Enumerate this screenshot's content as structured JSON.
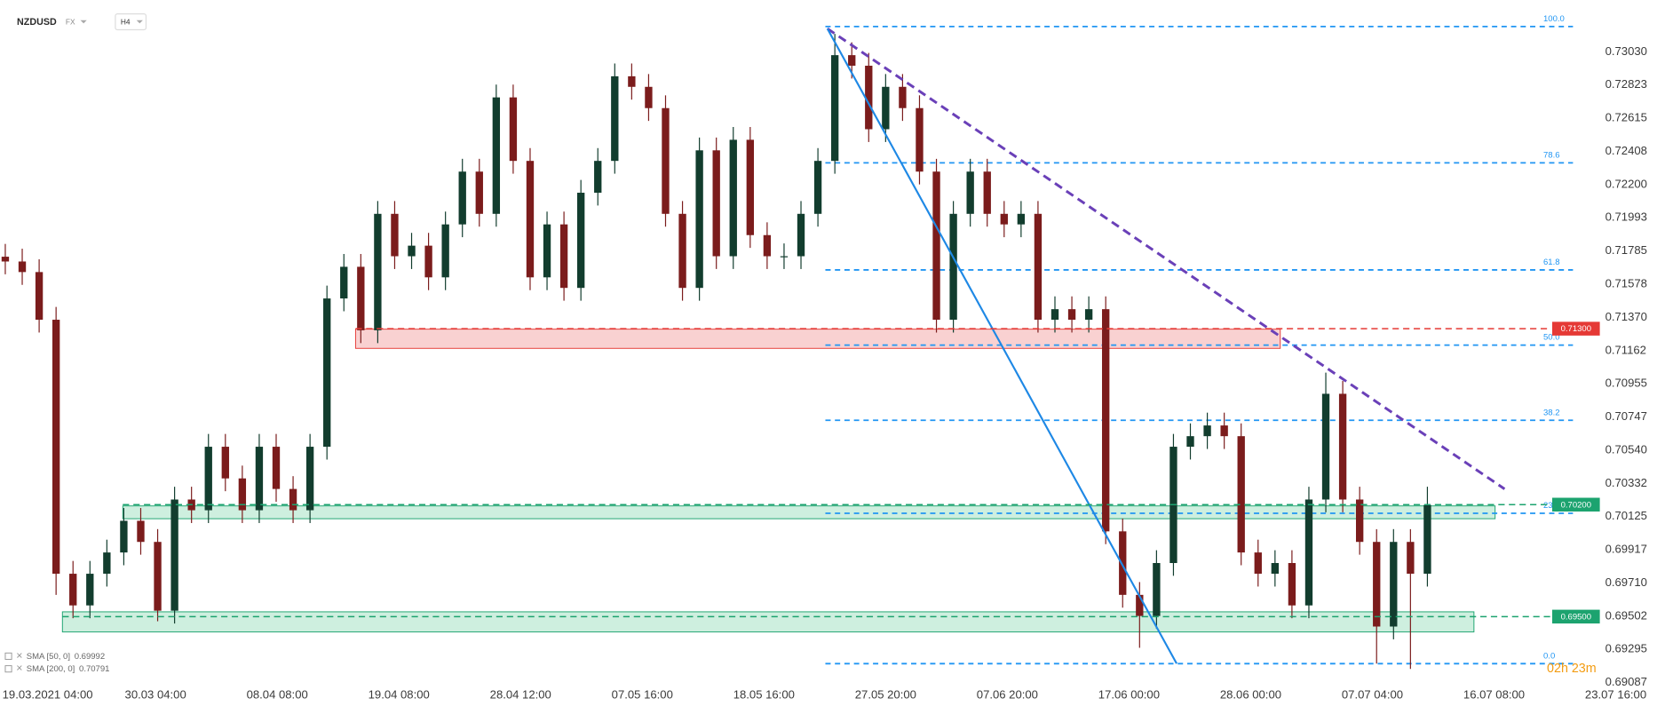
{
  "header": {
    "symbol": "NZDUSD",
    "market": "FX",
    "timeframe": "H4"
  },
  "chart_data": {
    "type": "candlestick",
    "up_color": "#123d2e",
    "down_color": "#7b1c1c",
    "open": [
      0.7175,
      0.7172,
      0.71654,
      0.71356,
      0.69768,
      0.6957,
      0.69768,
      0.69901,
      0.70099,
      0.69967,
      0.69537,
      0.70232,
      0.70165,
      0.70562,
      0.70364,
      0.70165,
      0.70562,
      0.70298,
      0.70165,
      0.70562,
      0.71489,
      0.71687,
      0.7129,
      0.72018,
      0.71753,
      0.71819,
      0.71621,
      0.71952,
      0.72282,
      0.72018,
      0.72746,
      0.72349,
      0.71621,
      0.71952,
      0.71555,
      0.7215,
      0.72349,
      0.72878,
      0.72812,
      0.72679,
      0.72018,
      0.71555,
      0.72415,
      0.71753,
      0.72481,
      0.71885,
      0.71753,
      0.71753,
      0.72018,
      0.72349,
      0.7301,
      0.72944,
      0.72547,
      0.72812,
      0.72679,
      0.72282,
      0.71356,
      0.72018,
      0.72282,
      0.72018,
      0.71952,
      0.72018,
      0.71356,
      0.71422,
      0.71356,
      0.71422,
      0.70033,
      0.69636,
      0.69504,
      0.69835,
      0.70562,
      0.70628,
      0.70695,
      0.70628,
      0.69901,
      0.69768,
      0.69835,
      0.6957,
      0.70232,
      0.70893,
      0.70232,
      0.69967,
      0.69438,
      0.69967,
      0.69768
    ],
    "high": [
      0.7183,
      0.718,
      0.71734,
      0.71436,
      0.69848,
      0.69848,
      0.69981,
      0.70179,
      0.70179,
      0.70047,
      0.70312,
      0.70312,
      0.70642,
      0.70642,
      0.70444,
      0.70642,
      0.70642,
      0.70378,
      0.70642,
      0.71569,
      0.71767,
      0.71767,
      0.72098,
      0.72098,
      0.71899,
      0.71899,
      0.72032,
      0.72362,
      0.72362,
      0.72826,
      0.72826,
      0.72429,
      0.72032,
      0.72032,
      0.7223,
      0.72429,
      0.72958,
      0.72958,
      0.72892,
      0.72759,
      0.72098,
      0.72495,
      0.72495,
      0.72561,
      0.72561,
      0.71965,
      0.71833,
      0.72098,
      0.72429,
      0.73143,
      0.7309,
      0.73024,
      0.72892,
      0.72892,
      0.72759,
      0.72362,
      0.72098,
      0.72362,
      0.72362,
      0.72098,
      0.72098,
      0.72098,
      0.71502,
      0.71502,
      0.71502,
      0.71502,
      0.70113,
      0.69716,
      0.69915,
      0.70642,
      0.70708,
      0.70775,
      0.70775,
      0.70708,
      0.69981,
      0.69915,
      0.69915,
      0.70312,
      0.71025,
      0.70973,
      0.70312,
      0.70047,
      0.70047,
      0.70047,
      0.70312
    ],
    "low": [
      0.7164,
      0.71574,
      0.71276,
      0.69636,
      0.6949,
      0.6949,
      0.69688,
      0.69821,
      0.69887,
      0.69471,
      0.69457,
      0.70085,
      0.70085,
      0.70284,
      0.70085,
      0.70085,
      0.70218,
      0.70085,
      0.70085,
      0.70482,
      0.71409,
      0.7121,
      0.7121,
      0.71673,
      0.71673,
      0.71541,
      0.71541,
      0.71872,
      0.71938,
      0.71938,
      0.72269,
      0.71541,
      0.71541,
      0.71475,
      0.71475,
      0.7207,
      0.72269,
      0.72732,
      0.72599,
      0.71938,
      0.71475,
      0.71475,
      0.71673,
      0.71673,
      0.71805,
      0.71673,
      0.71673,
      0.71673,
      0.71938,
      0.72269,
      0.72864,
      0.72467,
      0.72467,
      0.72599,
      0.72202,
      0.71276,
      0.71276,
      0.71938,
      0.71938,
      0.71872,
      0.71872,
      0.71276,
      0.71276,
      0.71276,
      0.71276,
      0.69953,
      0.69556,
      0.69305,
      0.69424,
      0.69755,
      0.70482,
      0.70548,
      0.70548,
      0.69821,
      0.69688,
      0.69688,
      0.6949,
      0.6949,
      0.70152,
      0.70152,
      0.69887,
      0.69206,
      0.69358,
      0.69173,
      0.69688
    ],
    "close": [
      0.7172,
      0.71654,
      0.71356,
      0.69768,
      0.6957,
      0.69768,
      0.69901,
      0.70099,
      0.69967,
      0.69537,
      0.70232,
      0.70165,
      0.70562,
      0.70364,
      0.70165,
      0.70562,
      0.70298,
      0.70165,
      0.70562,
      0.71489,
      0.71687,
      0.7129,
      0.72018,
      0.71753,
      0.71819,
      0.71621,
      0.71952,
      0.72282,
      0.72018,
      0.72746,
      0.72349,
      0.71621,
      0.71952,
      0.71555,
      0.7215,
      0.72349,
      0.72878,
      0.72812,
      0.72679,
      0.72018,
      0.71555,
      0.72415,
      0.71753,
      0.72481,
      0.71885,
      0.71753,
      0.71753,
      0.72018,
      0.72349,
      0.7301,
      0.72944,
      0.72547,
      0.72812,
      0.72679,
      0.72282,
      0.71356,
      0.72018,
      0.72282,
      0.72018,
      0.71952,
      0.72018,
      0.71356,
      0.71422,
      0.71356,
      0.71422,
      0.70033,
      0.69636,
      0.69504,
      0.69835,
      0.70562,
      0.70628,
      0.70695,
      0.70628,
      0.69901,
      0.69768,
      0.69835,
      0.6957,
      0.70232,
      0.70893,
      0.70232,
      0.69967,
      0.69438,
      0.69967,
      0.69768,
      0.70198
    ],
    "xlim": [
      -0.3125,
      97.5625
    ],
    "xticks": [
      {
        "value": 2.5,
        "label": "19.03.2021  04:00"
      },
      {
        "value": 8.875,
        "label": "30.03  04:00"
      },
      {
        "value": 16.0625,
        "label": "08.04  08:00"
      },
      {
        "value": 23.25,
        "label": "19.04  08:00"
      },
      {
        "value": 30.4375,
        "label": "28.04  12:00"
      },
      {
        "value": 37.625,
        "label": "07.05  16:00"
      },
      {
        "value": 44.8125,
        "label": "18.05  16:00"
      },
      {
        "value": 52,
        "label": "27.05  20:00"
      },
      {
        "value": 59.1875,
        "label": "07.06  20:00"
      },
      {
        "value": 66.375,
        "label": "17.06  00:00"
      },
      {
        "value": 73.5625,
        "label": "28.06  00:00"
      },
      {
        "value": 80.75,
        "label": "07.07  04:00"
      },
      {
        "value": 87.9375,
        "label": "16.07  08:00"
      },
      {
        "value": 95.125,
        "label": "23.07  16:00"
      }
    ],
    "ylim": [
      0.69041,
      0.73341
    ],
    "yticks": [
      {
        "value": 0.7303,
        "label": "0.73030"
      },
      {
        "value": 0.72823,
        "label": "0.72823"
      },
      {
        "value": 0.72615,
        "label": "0.72615"
      },
      {
        "value": 0.72408,
        "label": "0.72408"
      },
      {
        "value": 0.722,
        "label": "0.72200"
      },
      {
        "value": 0.71993,
        "label": "0.71993"
      },
      {
        "value": 0.71785,
        "label": "0.71785"
      },
      {
        "value": 0.71578,
        "label": "0.71578"
      },
      {
        "value": 0.7137,
        "label": "0.71370"
      },
      {
        "value": 0.71162,
        "label": "0.71162"
      },
      {
        "value": 0.70955,
        "label": "0.70955"
      },
      {
        "value": 0.70747,
        "label": "0.70747"
      },
      {
        "value": 0.7054,
        "label": "0.70540"
      },
      {
        "value": 0.70332,
        "label": "0.70332"
      },
      {
        "value": 0.70125,
        "label": "0.70125"
      },
      {
        "value": 0.69917,
        "label": "0.69917"
      },
      {
        "value": 0.6971,
        "label": "0.69710"
      },
      {
        "value": 0.69502,
        "label": "0.69502"
      },
      {
        "value": 0.69295,
        "label": "0.69295"
      },
      {
        "value": 0.69087,
        "label": "0.69087"
      }
    ],
    "fibonacci": {
      "high": 0.73189,
      "low": 0.69206,
      "start": 48.44,
      "end": 92.6,
      "color": "#2196f3",
      "levels": [
        {
          "value": 100,
          "label": "100.0"
        },
        {
          "value": 78.6,
          "label": "78.6"
        },
        {
          "value": 61.8,
          "label": "61.8"
        },
        {
          "value": 50,
          "label": "50.0"
        },
        {
          "value": 38.2,
          "label": "38.2"
        },
        {
          "value": 23.6,
          "label": "23.6"
        },
        {
          "value": 0,
          "label": "0.0"
        }
      ]
    },
    "zones": [
      {
        "high": 0.71297,
        "low": 0.71177,
        "start": 20.69,
        "end": 75.31,
        "line_end": 91.31,
        "level": {
          "value": 0.713,
          "label": "0.71300"
        },
        "color": "#e53935",
        "fill": "#f8c9c9"
      },
      {
        "high": 0.70192,
        "low": 0.70112,
        "start": 6.94,
        "end": 88,
        "line_end": 91.31,
        "level": {
          "value": 0.702,
          "label": "0.70200"
        },
        "color": "#1ca36f",
        "fill": "#c5ecd9"
      },
      {
        "high": 0.6953,
        "low": 0.69404,
        "start": 3.375,
        "end": 86.75,
        "line_end": 91.31,
        "level": {
          "value": 0.695,
          "label": "0.69500"
        },
        "color": "#1ca36f",
        "fill": "#c5ecd9"
      }
    ],
    "trendlines": [
      {
        "start": [
          48.56,
          0.73176
        ],
        "end": [
          88.56,
          0.70298
        ],
        "color": "#6a40b8",
        "dashed": true
      },
      {
        "start": [
          48.56,
          0.73176
        ],
        "end": [
          69.19,
          0.69206
        ],
        "color": "#1e88e5",
        "dashed": false
      }
    ],
    "indicators": [
      {
        "label": "SMA [50, 0]",
        "value": 0.69992
      },
      {
        "label": "SMA [200, 0]",
        "value": 0.70791
      }
    ],
    "countdown": "02h 23m"
  }
}
